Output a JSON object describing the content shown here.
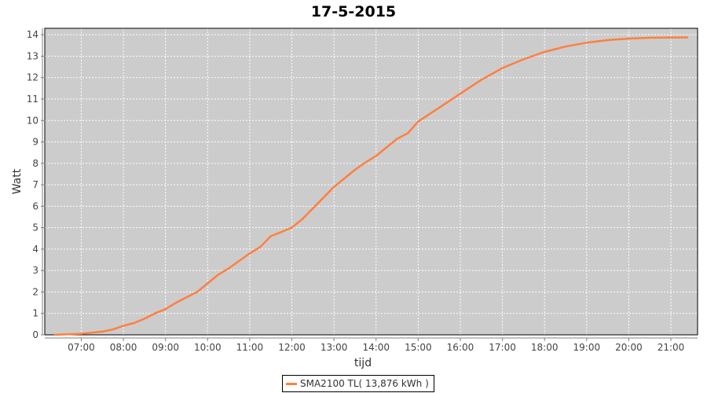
{
  "chart_data": {
    "type": "line",
    "title": "17-5-2015",
    "xlabel": "tijd",
    "ylabel": "Watt",
    "ylim": [
      0,
      14.3
    ],
    "xlim": [
      "06:08",
      "21:38"
    ],
    "yticks": [
      "0",
      "1",
      "2",
      "3",
      "4",
      "5",
      "6",
      "7",
      "8",
      "9",
      "10",
      "11",
      "12",
      "13",
      "14"
    ],
    "xticks": [
      "07:00",
      "08:00",
      "09:00",
      "10:00",
      "11:00",
      "12:00",
      "13:00",
      "14:00",
      "15:00",
      "16:00",
      "17:00",
      "18:00",
      "19:00",
      "20:00",
      "21:00"
    ],
    "grid": true,
    "legend_position": "bottom",
    "plot_background": "#cccccc",
    "series": [
      {
        "name": "SMA2100 TL( 13,876 kWh )",
        "color": "#ff7f3f",
        "x": [
          "06:22",
          "07:00",
          "07:30",
          "07:45",
          "08:00",
          "08:15",
          "08:30",
          "08:45",
          "09:00",
          "09:15",
          "09:30",
          "09:45",
          "10:00",
          "10:15",
          "10:30",
          "10:45",
          "11:00",
          "11:15",
          "11:30",
          "11:45",
          "12:00",
          "12:15",
          "12:30",
          "12:45",
          "13:00",
          "13:15",
          "13:30",
          "13:45",
          "14:00",
          "14:15",
          "14:30",
          "14:45",
          "15:00",
          "15:30",
          "16:00",
          "16:30",
          "17:00",
          "17:30",
          "18:00",
          "18:30",
          "19:00",
          "19:30",
          "20:00",
          "20:30",
          "21:00",
          "21:24"
        ],
        "y": [
          0,
          0.05,
          0.15,
          0.25,
          0.42,
          0.55,
          0.75,
          1.0,
          1.2,
          1.5,
          1.75,
          2.0,
          2.4,
          2.8,
          3.1,
          3.45,
          3.8,
          4.1,
          4.6,
          4.8,
          5.0,
          5.4,
          5.9,
          6.4,
          6.9,
          7.3,
          7.7,
          8.05,
          8.35,
          8.75,
          9.15,
          9.4,
          9.95,
          10.6,
          11.25,
          11.9,
          12.45,
          12.85,
          13.2,
          13.45,
          13.63,
          13.75,
          13.82,
          13.86,
          13.87,
          13.876
        ]
      }
    ]
  }
}
